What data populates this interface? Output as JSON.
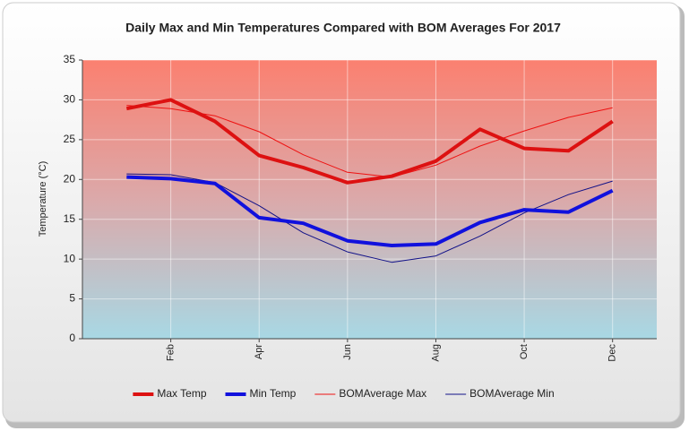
{
  "chart_data": {
    "type": "line",
    "title": "Daily Max and Min Temperatures Compared with BOM Averages For 2017",
    "y_label": "Temperature (°C)",
    "categories": [
      null,
      "Feb",
      null,
      "Apr",
      null,
      "Jun",
      null,
      "Aug",
      null,
      "Oct",
      null,
      "Dec"
    ],
    "series": [
      {
        "name": "Max Temp",
        "color": "#dd1111",
        "line_width": 4,
        "values": [
          28.9,
          30.0,
          27.3,
          23.0,
          21.5,
          19.6,
          20.4,
          22.3,
          26.3,
          23.9,
          23.6,
          27.3
        ]
      },
      {
        "name": "Min Temp",
        "color": "#1111dd",
        "line_width": 4,
        "values": [
          20.3,
          20.1,
          19.5,
          15.2,
          14.5,
          12.3,
          11.7,
          11.9,
          14.6,
          16.2,
          15.9,
          18.6
        ]
      },
      {
        "name": "BOMAverage Max",
        "color": "#ee1111",
        "line_width": 1,
        "values": [
          29.3,
          28.9,
          28.0,
          26.0,
          23.1,
          20.9,
          20.3,
          21.8,
          24.2,
          26.1,
          27.8,
          29.0
        ]
      },
      {
        "name": "BOMAverage Min",
        "color": "#111188",
        "line_width": 1,
        "values": [
          20.7,
          20.6,
          19.6,
          16.7,
          13.3,
          10.9,
          9.6,
          10.4,
          12.9,
          15.8,
          18.1,
          19.8
        ]
      }
    ],
    "ylim": [
      0,
      35
    ],
    "yticks": [
      0,
      5,
      10,
      15,
      20,
      25,
      30,
      35
    ],
    "grid": true,
    "legend": "bottom"
  }
}
